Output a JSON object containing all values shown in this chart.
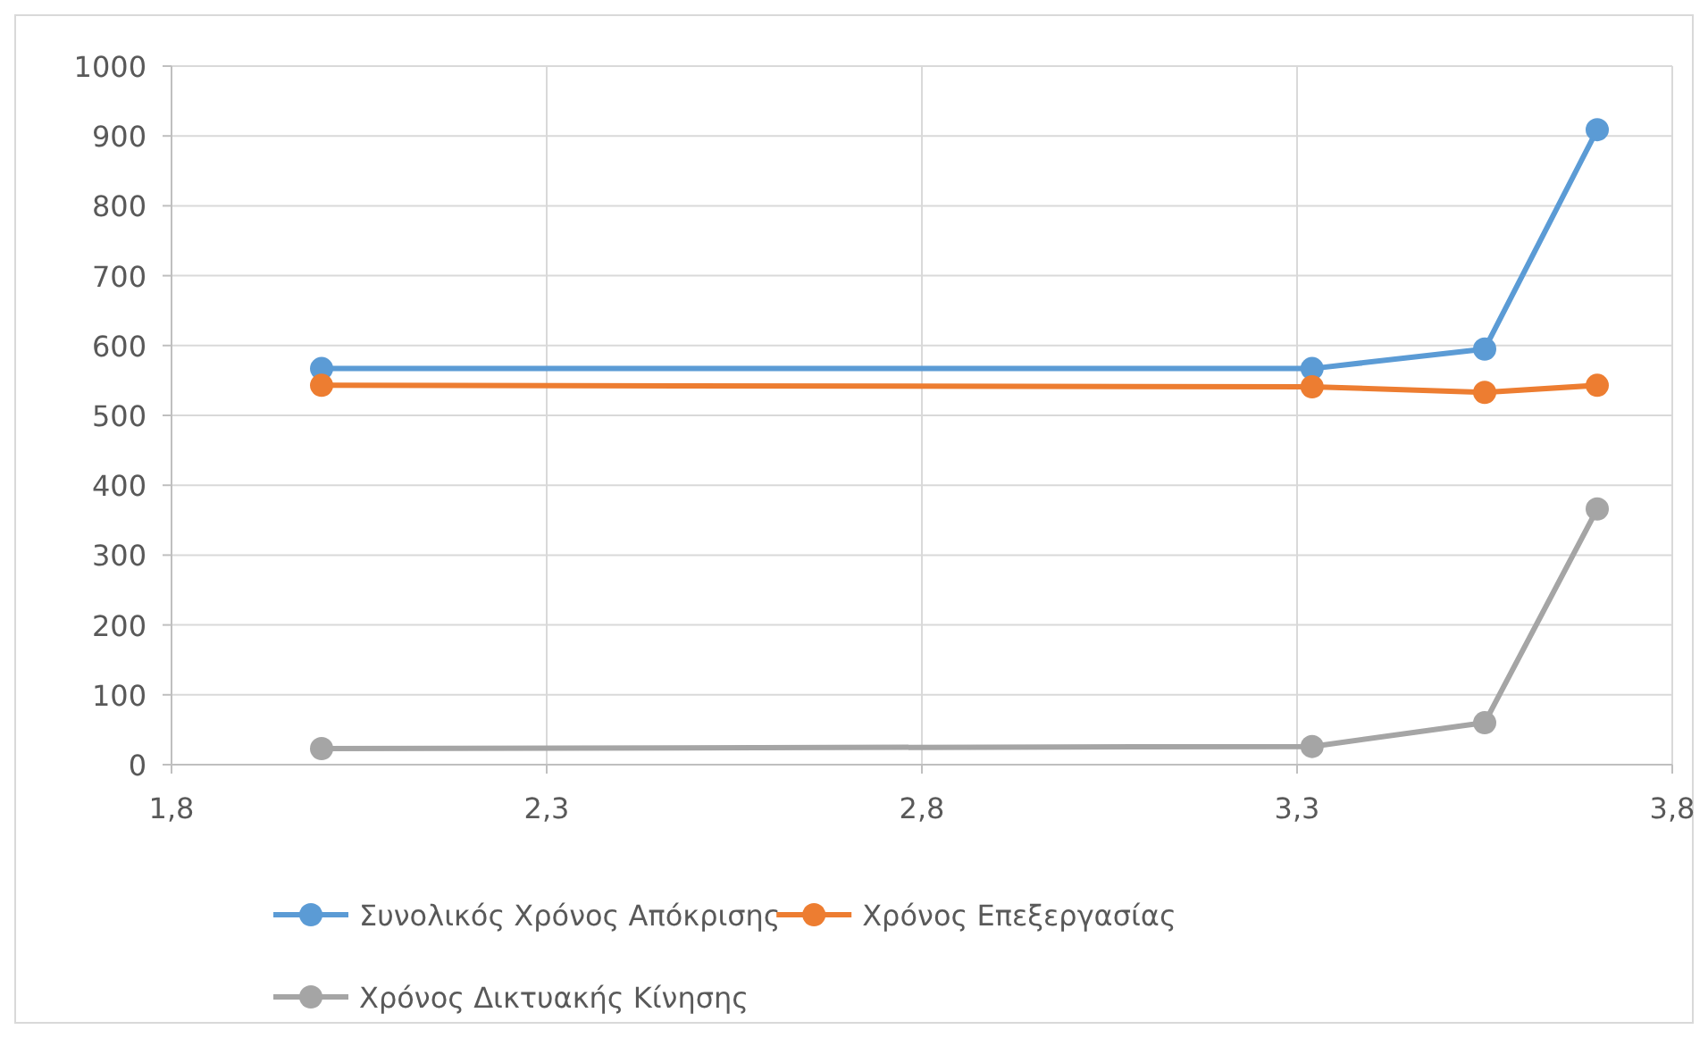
{
  "chart_data": {
    "type": "line",
    "x": [
      2.0,
      3.32,
      3.55,
      3.7
    ],
    "xlim": [
      1.8,
      3.8
    ],
    "xticks": [
      {
        "value": 1.8,
        "label": "1,8"
      },
      {
        "value": 2.3,
        "label": "2,3"
      },
      {
        "value": 2.8,
        "label": "2,8"
      },
      {
        "value": 3.3,
        "label": "3,3"
      },
      {
        "value": 3.8,
        "label": "3,8"
      }
    ],
    "ylim": [
      0,
      1000
    ],
    "yticks": [
      0,
      100,
      200,
      300,
      400,
      500,
      600,
      700,
      800,
      900,
      1000
    ],
    "grid": true,
    "legend": "bottom",
    "marker": "circle",
    "line_style": "solid",
    "series": [
      {
        "name": "Συνολικός Χρόνος Απόκρισης",
        "color": "#5b9bd5",
        "values": [
          567,
          567,
          595,
          909
        ]
      },
      {
        "name": "Χρόνος Επεξεργασίας",
        "color": "#ed7d31",
        "values": [
          543,
          541,
          533,
          543
        ]
      },
      {
        "name": "Χρόνος Δικτυακής Κίνησης",
        "color": "#a5a5a5",
        "values": [
          23,
          26,
          60,
          366
        ]
      }
    ]
  }
}
